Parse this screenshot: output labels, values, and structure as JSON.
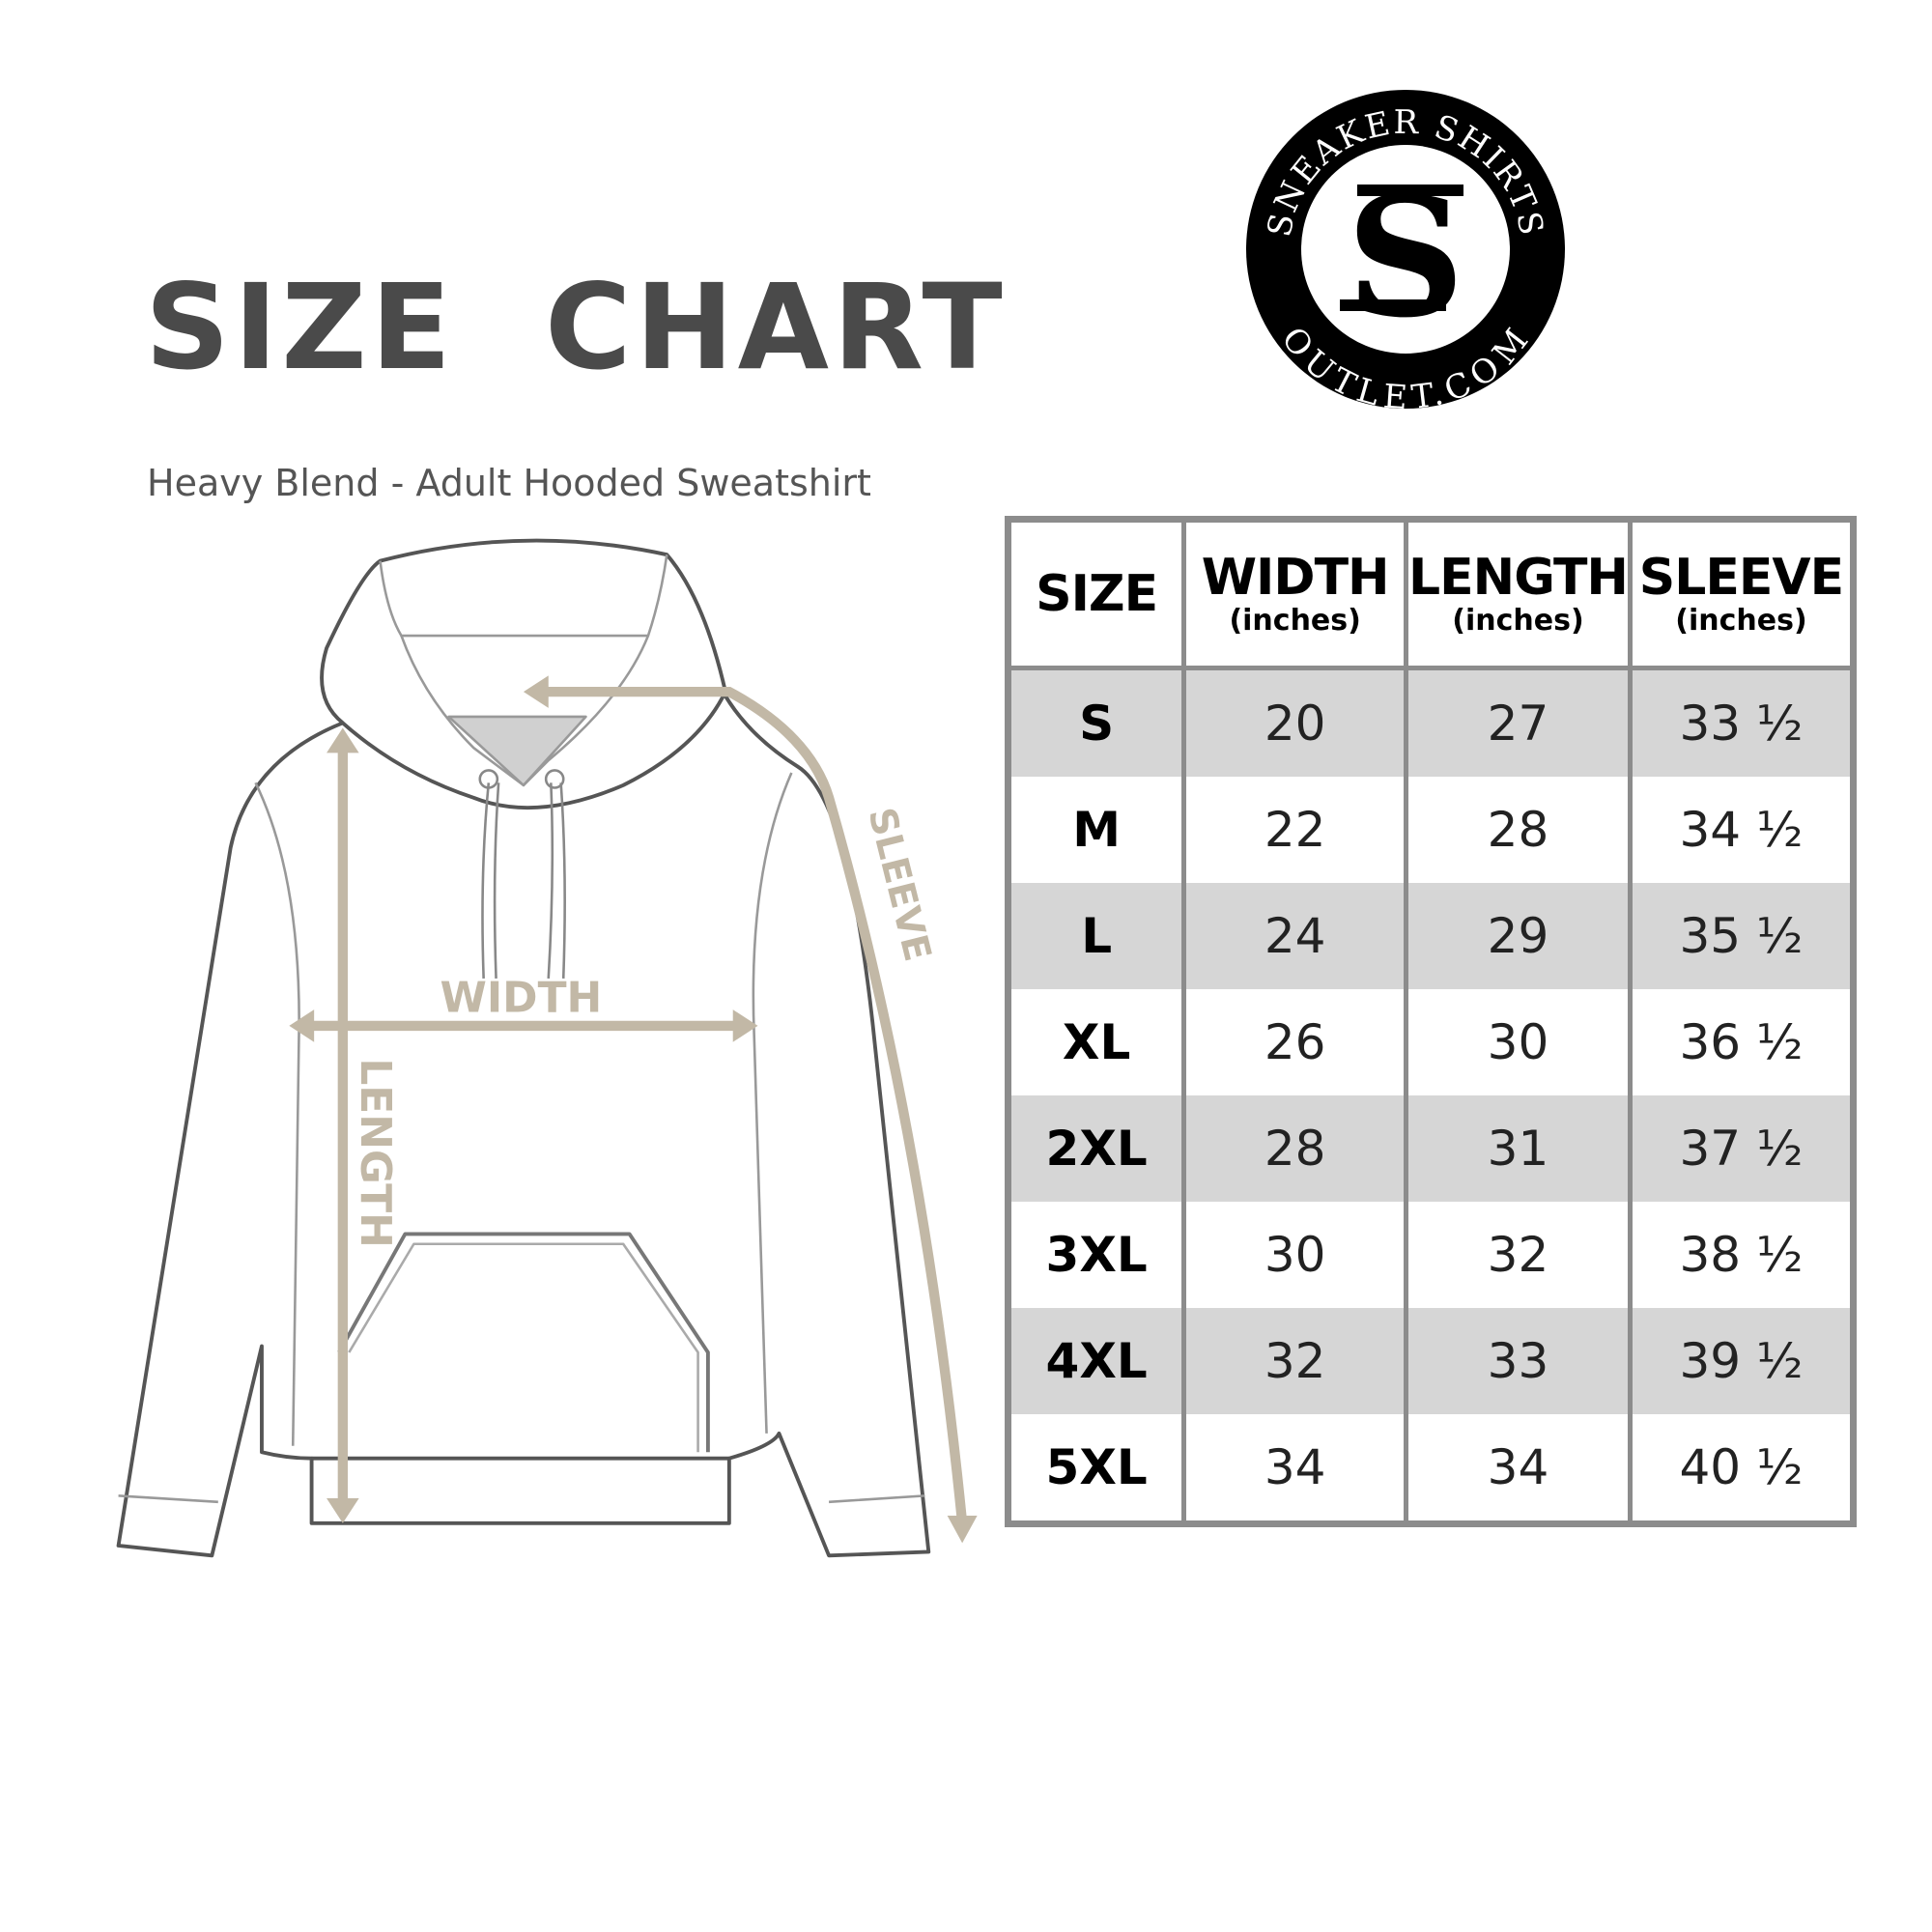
{
  "title": "SIZE  CHART",
  "subtitle": "Heavy Blend - Adult Hooded Sweatshirt",
  "logo": {
    "top_text": "SNEAKER SHIRTS",
    "bottom_text": "OUTLET.COM",
    "monogram": "SS"
  },
  "diagram": {
    "labels": {
      "width": "WIDTH",
      "length": "LENGTH",
      "sleeve": "SLEEVE"
    },
    "colors": {
      "outline": "#555555",
      "measure": "#c2b8a6",
      "neck": "#d0d0d0"
    }
  },
  "table": {
    "headers": [
      {
        "label": "SIZE",
        "unit": ""
      },
      {
        "label": "WIDTH",
        "unit": "(inches)"
      },
      {
        "label": "LENGTH",
        "unit": "(inches)"
      },
      {
        "label": "SLEEVE",
        "unit": "(inches)"
      }
    ],
    "rows": [
      [
        "S",
        "20",
        "27",
        "33 ½"
      ],
      [
        "M",
        "22",
        "28",
        "34 ½"
      ],
      [
        "L",
        "24",
        "29",
        "35 ½"
      ],
      [
        "XL",
        "26",
        "30",
        "36 ½"
      ],
      [
        "2XL",
        "28",
        "31",
        "37 ½"
      ],
      [
        "3XL",
        "30",
        "32",
        "38 ½"
      ],
      [
        "4XL",
        "32",
        "33",
        "39 ½"
      ],
      [
        "5XL",
        "34",
        "34",
        "40 ½"
      ]
    ],
    "colors": {
      "border": "#8c8c8c",
      "stripe": "#d6d6d6"
    }
  }
}
